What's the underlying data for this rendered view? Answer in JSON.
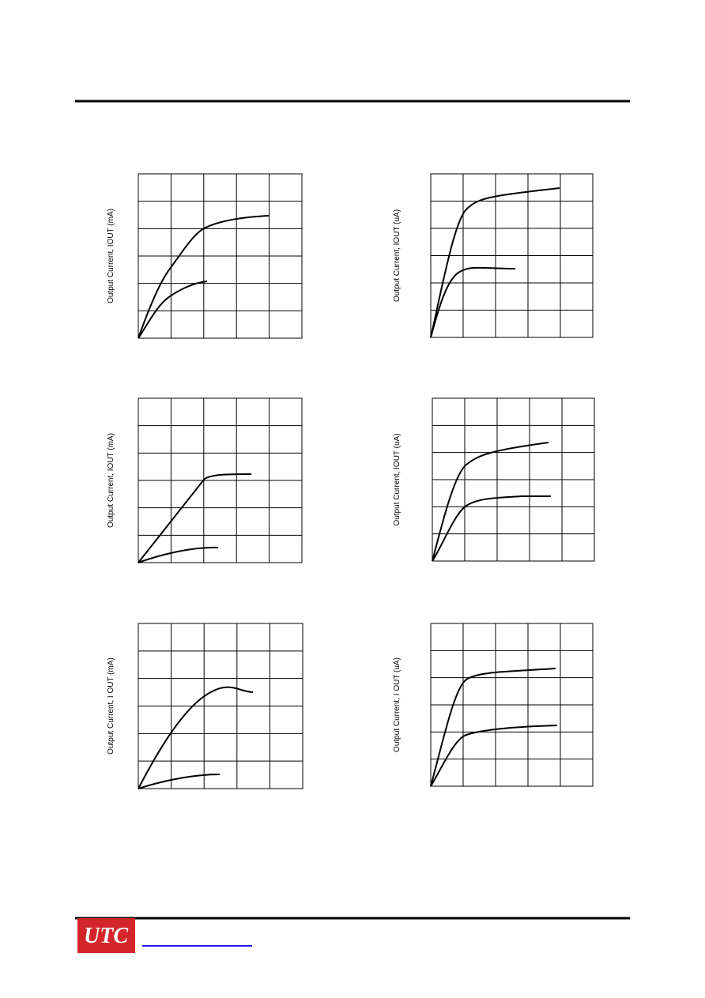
{
  "charts": [
    {
      "y_label": "Output Current, IOUT (mA)"
    },
    {
      "y_label": "Output Current, IOUT (uA)"
    },
    {
      "y_label": "Output Current, IOUT (mA)"
    },
    {
      "y_label": "Output Current, IOUT (uA)"
    },
    {
      "y_label": "Output Current, I OUT (mA)"
    },
    {
      "y_label": "Output Current, I OUT (uA)"
    }
  ],
  "footer": {
    "logo": "UTC"
  }
}
